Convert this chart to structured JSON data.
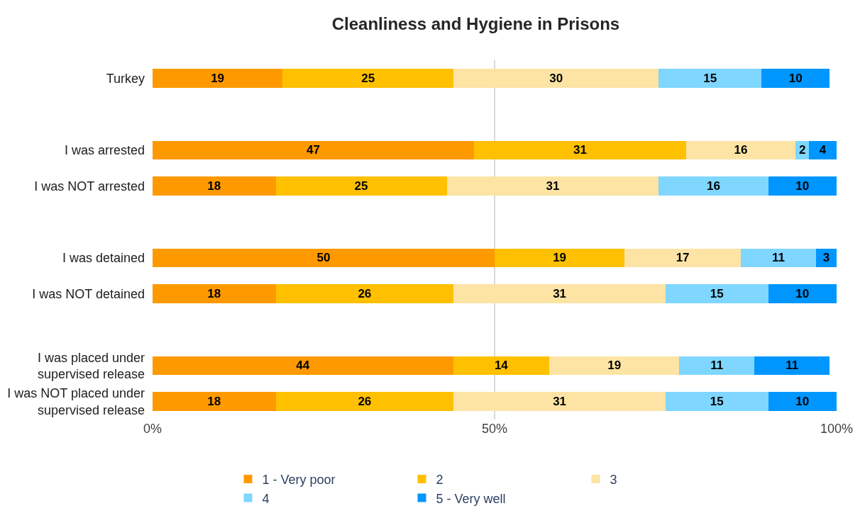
{
  "chart_data": {
    "type": "bar",
    "orientation": "horizontal",
    "stacked": true,
    "title": "Cleanliness and Hygiene in Prisons",
    "categories": [
      "Turkey",
      null,
      "I was arrested",
      "I was NOT arrested",
      null,
      "I was detained",
      "I was NOT detained",
      null,
      "I was placed under supervised release",
      "I was NOT placed under supervised release"
    ],
    "series": [
      {
        "name": "1 - Very poor",
        "color": "#ff9900",
        "values": [
          19,
          null,
          47,
          18,
          null,
          50,
          18,
          null,
          44,
          18
        ]
      },
      {
        "name": "2",
        "color": "#ffc000",
        "values": [
          25,
          null,
          31,
          25,
          null,
          19,
          26,
          null,
          14,
          26
        ]
      },
      {
        "name": "3",
        "color": "#fde4a5",
        "values": [
          30,
          null,
          16,
          31,
          null,
          17,
          31,
          null,
          19,
          31
        ]
      },
      {
        "name": "4",
        "color": "#7fd6ff",
        "values": [
          15,
          null,
          2,
          16,
          null,
          11,
          15,
          null,
          11,
          15
        ]
      },
      {
        "name": "5 - Very well",
        "color": "#0096ff",
        "values": [
          10,
          null,
          4,
          10,
          null,
          3,
          10,
          null,
          11,
          10
        ]
      }
    ],
    "xlim": [
      0,
      100
    ],
    "xticks": [
      {
        "value": 0,
        "label": "0%"
      },
      {
        "value": 50,
        "label": "50%"
      },
      {
        "value": 100,
        "label": "100%"
      }
    ],
    "grid": "x",
    "legend": "bottom",
    "data_labels": true
  }
}
